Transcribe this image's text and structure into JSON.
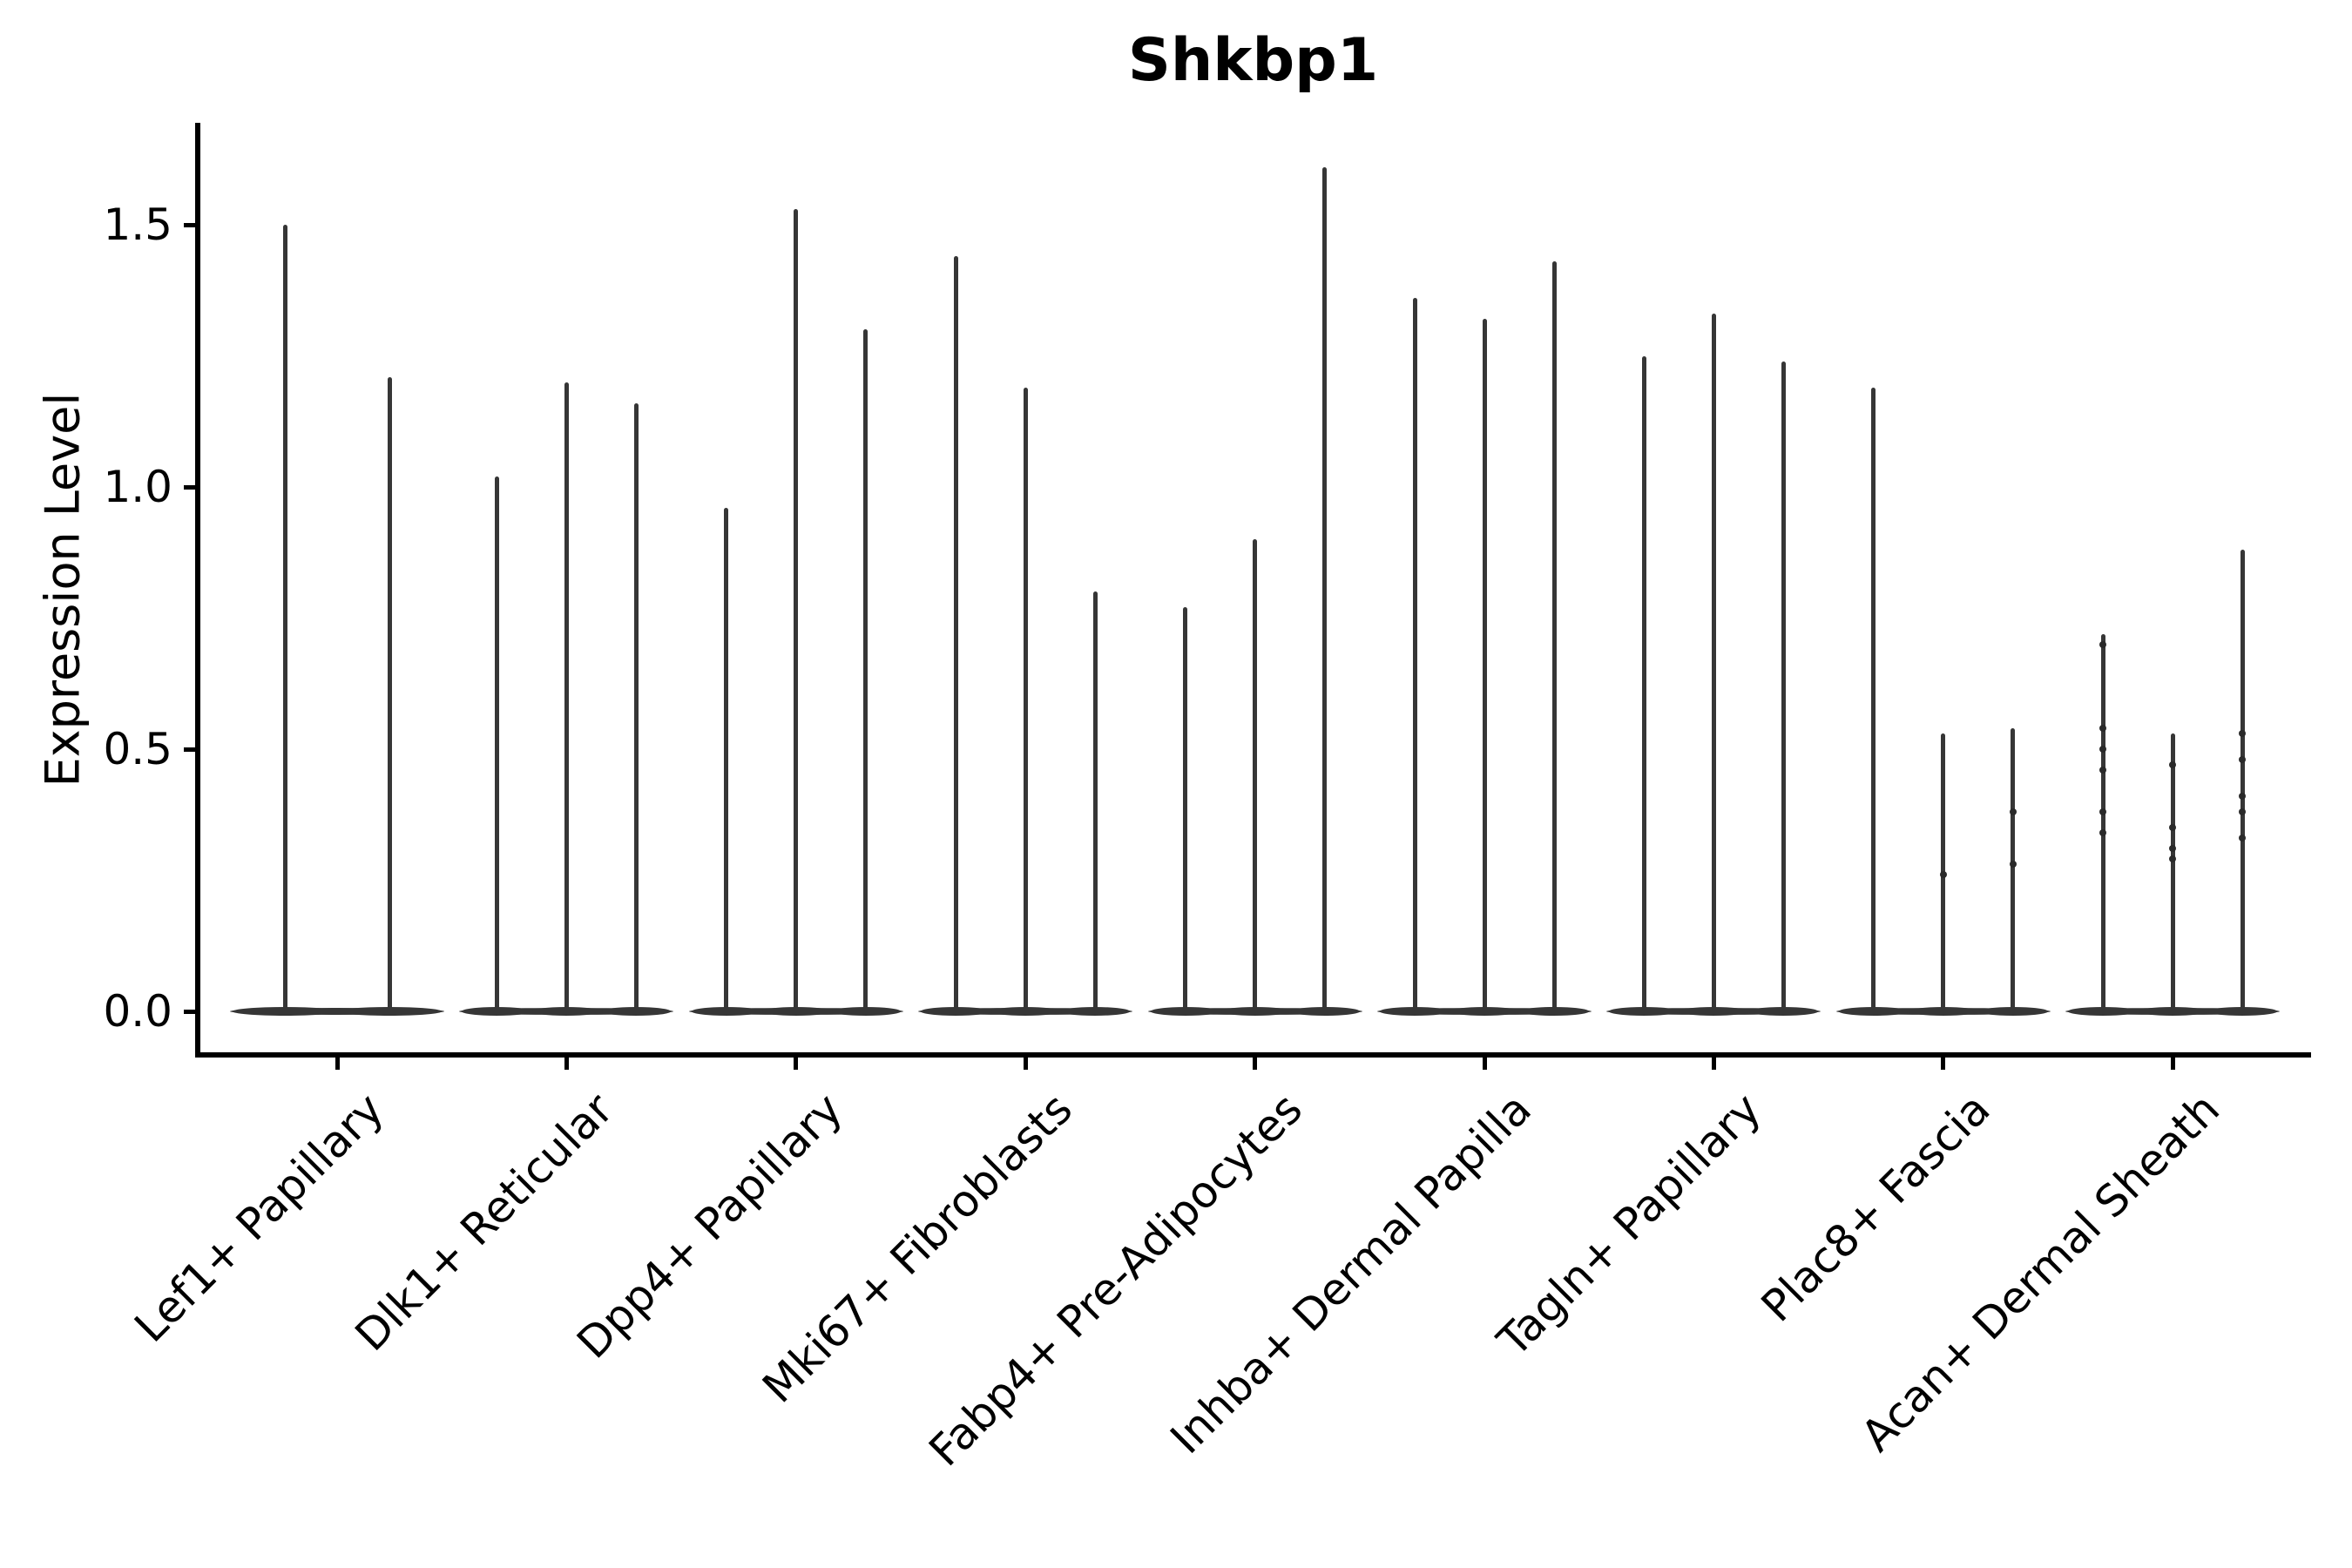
{
  "figure": {
    "title": "Shkbp1",
    "y_axis": {
      "label": "Expression Level",
      "tick_labels": [
        "0.0",
        "0.5",
        "1.0",
        "1.5"
      ],
      "tick_values": [
        0.0,
        0.5,
        1.0,
        1.5
      ]
    },
    "x_axis": {
      "categories": [
        "Lef1+ Papillary",
        "Dlk1+ Reticular",
        "Dpp4+ Papillary",
        "Mki67+ Fibroblasts",
        "Fabp4+ Pre-Adipocytes",
        "Inhba+ Dermal Papilla",
        "Tagln+ Papillary",
        "Plac8+ Fascia",
        "Acan+ Dermal Sheath"
      ]
    }
  },
  "colors": {
    "violin": "#363636",
    "dot": "#2a2a2a",
    "axis": "#000000",
    "text": "#000000",
    "background": "#ffffff"
  },
  "chart_data": {
    "type": "violin",
    "title": "Shkbp1",
    "xlabel": "",
    "ylabel": "Expression Level",
    "ylim": [
      -0.085,
      1.695
    ],
    "yticks": [
      0.0,
      0.5,
      1.0,
      1.5
    ],
    "grid": false,
    "legend_position": "none",
    "description": "Stacked-violin style gene expression plot. Each category holds narrow needle-like violins (sub-groups) whose mass is concentrated at expression 0 (flat disc at baseline) with a thin spike rising to the maximum expression value. Faint individual-cell dots are visible on some spikes.",
    "categories": [
      "Lef1+ Papillary",
      "Dlk1+ Reticular",
      "Dpp4+ Papillary",
      "Mki67+ Fibroblasts",
      "Fabp4+ Pre-Adipocytes",
      "Inhba+ Dermal Papilla",
      "Tagln+ Papillary",
      "Plac8+ Fascia",
      "Acan+ Dermal Sheath"
    ],
    "groups": [
      {
        "category": "Lef1+ Papillary",
        "violins": [
          {
            "max": 1.5,
            "points": []
          },
          {
            "max": 1.21,
            "points": []
          }
        ]
      },
      {
        "category": "Dlk1+ Reticular",
        "violins": [
          {
            "max": 1.02,
            "points": []
          },
          {
            "max": 1.2,
            "points": []
          },
          {
            "max": 1.16,
            "points": []
          }
        ]
      },
      {
        "category": "Dpp4+ Papillary",
        "violins": [
          {
            "max": 0.96,
            "points": []
          },
          {
            "max": 1.53,
            "points": []
          },
          {
            "max": 1.3,
            "points": []
          }
        ]
      },
      {
        "category": "Mki67+ Fibroblasts",
        "violins": [
          {
            "max": 1.44,
            "points": []
          },
          {
            "max": 1.19,
            "points": []
          },
          {
            "max": 0.8,
            "points": []
          }
        ]
      },
      {
        "category": "Fabp4+ Pre-Adipocytes",
        "violins": [
          {
            "max": 0.77,
            "points": []
          },
          {
            "max": 0.9,
            "points": []
          },
          {
            "max": 1.61,
            "points": []
          }
        ]
      },
      {
        "category": "Inhba+ Dermal Papilla",
        "violins": [
          {
            "max": 1.36,
            "points": []
          },
          {
            "max": 1.32,
            "points": []
          },
          {
            "max": 1.43,
            "points": []
          }
        ]
      },
      {
        "category": "Tagln+ Papillary",
        "violins": [
          {
            "max": 1.25,
            "points": []
          },
          {
            "max": 1.33,
            "points": []
          },
          {
            "max": 1.24,
            "points": []
          }
        ]
      },
      {
        "category": "Plac8+ Fascia",
        "violins": [
          {
            "max": 1.19,
            "points": []
          },
          {
            "max": 0.53,
            "points": [
              0.26
            ]
          },
          {
            "max": 0.54,
            "points": [
              0.38,
              0.28
            ]
          }
        ]
      },
      {
        "category": "Acan+ Dermal Sheath",
        "violins": [
          {
            "max": 0.72,
            "points": [
              0.7,
              0.54,
              0.5,
              0.46,
              0.38,
              0.34
            ]
          },
          {
            "max": 0.53,
            "points": [
              0.47,
              0.35,
              0.31,
              0.29
            ]
          },
          {
            "max": 0.88,
            "points": [
              0.53,
              0.48,
              0.41,
              0.38,
              0.33
            ]
          }
        ]
      }
    ]
  }
}
